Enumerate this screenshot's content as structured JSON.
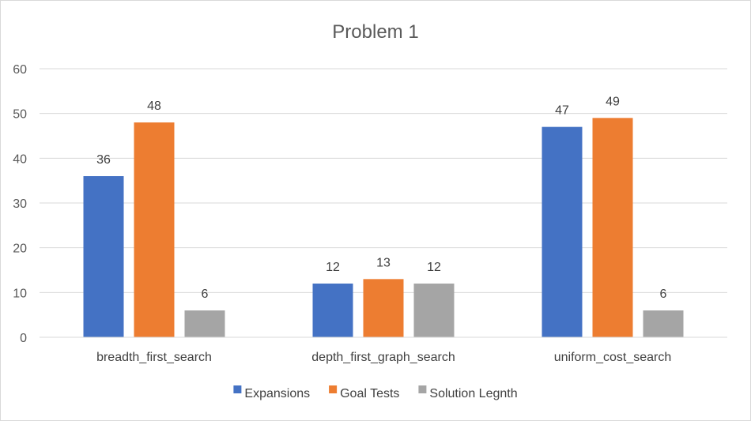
{
  "chart_data": {
    "type": "bar",
    "title": "Problem 1",
    "categories": [
      "breadth_first_search",
      "depth_first_graph_search",
      "uniform_cost_search"
    ],
    "series": [
      {
        "name": "Expansions",
        "values": [
          36,
          12,
          47
        ],
        "color": "#4472c4"
      },
      {
        "name": "Goal Tests",
        "values": [
          48,
          13,
          49
        ],
        "color": "#ed7d31"
      },
      {
        "name": "Solution Legnth",
        "values": [
          6,
          12,
          6
        ],
        "color": "#a5a5a5"
      }
    ],
    "ylim": [
      0,
      60
    ],
    "yticks": [
      0,
      10,
      20,
      30,
      40,
      50,
      60
    ],
    "grid": true,
    "legend_position": "bottom",
    "xlabel": "",
    "ylabel": ""
  }
}
